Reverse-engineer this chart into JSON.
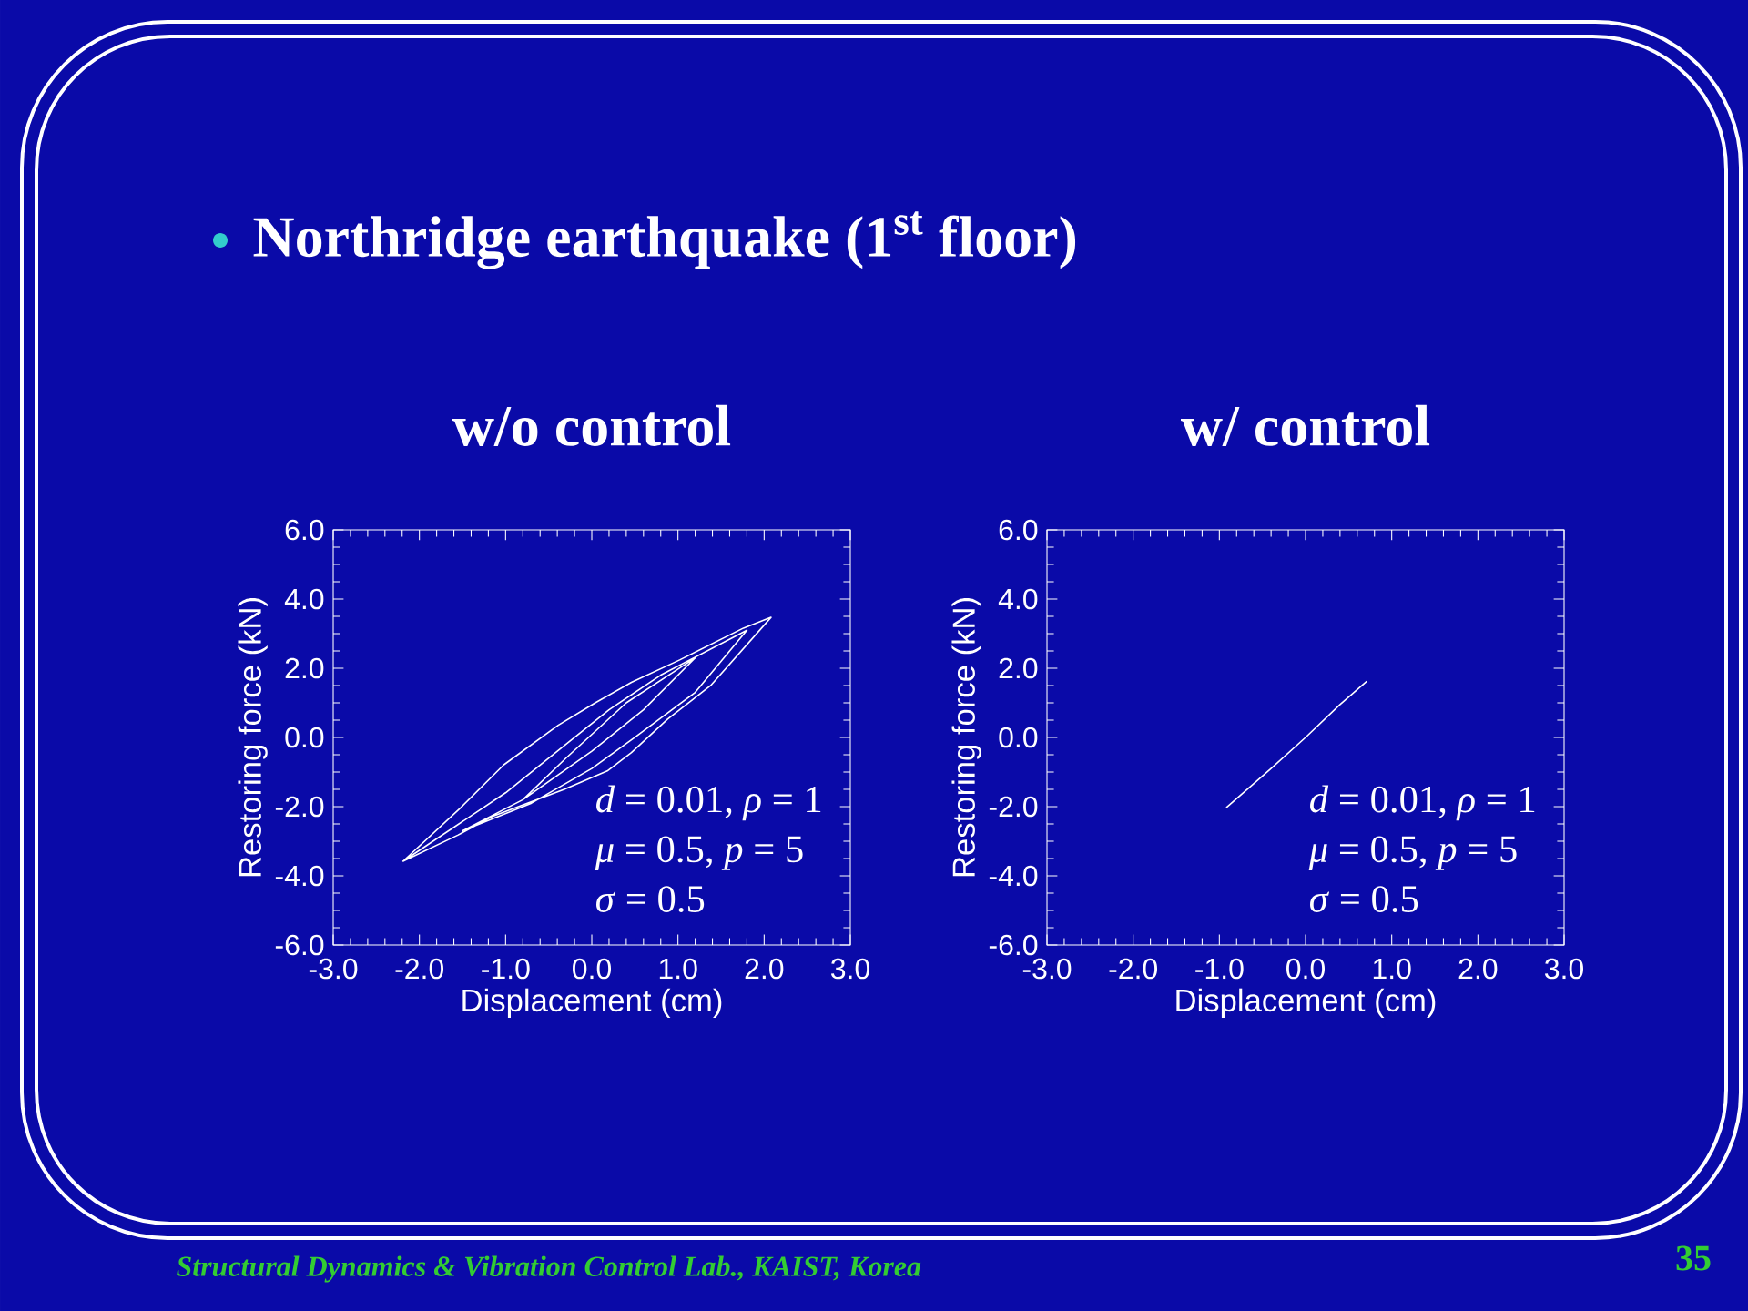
{
  "chart_data": [
    {
      "type": "line",
      "title": "w/o control",
      "xlabel": "Displacement (cm)",
      "ylabel": "Restoring force (kN)",
      "xlim": [
        -3,
        3
      ],
      "ylim": [
        -6,
        6
      ],
      "xticks": [
        {
          "value": -3,
          "label": "-3.0"
        },
        {
          "value": -2,
          "label": "-2.0"
        },
        {
          "value": -1,
          "label": "-1.0"
        },
        {
          "value": 0,
          "label": "0.0"
        },
        {
          "value": 1,
          "label": "1.0"
        },
        {
          "value": 2,
          "label": "2.0"
        },
        {
          "value": 3,
          "label": "3.0"
        }
      ],
      "yticks": [
        {
          "value": -6,
          "label": "-6.0"
        },
        {
          "value": -4,
          "label": "-4.0"
        },
        {
          "value": -2,
          "label": "-2.0"
        },
        {
          "value": 0,
          "label": "0.0"
        },
        {
          "value": 2,
          "label": "2.0"
        },
        {
          "value": 4,
          "label": "4.0"
        },
        {
          "value": 6,
          "label": "6.0"
        }
      ],
      "series": [
        {
          "color": "#ffffff",
          "x": [
            -2.19,
            -1.52,
            -1.02,
            -0.39,
            0.04,
            0.46,
            1.02,
            1.76,
            2.08,
            1.38,
            0.88,
            0.46,
            0.18,
            -0.32,
            -1.16,
            -1.55,
            -2.19,
            -1.0,
            -0.4,
            0.2,
            0.8,
            1.8,
            1.2,
            0.5,
            0.0,
            -0.7,
            -1.5,
            -0.8,
            -0.3,
            0.4,
            1.2,
            0.6,
            0.0,
            -0.8
          ],
          "values": [
            -3.58,
            -2.03,
            -0.79,
            0.35,
            1.0,
            1.59,
            2.24,
            3.16,
            3.47,
            1.5,
            0.53,
            -0.44,
            -0.97,
            -1.5,
            -2.29,
            -2.82,
            -3.58,
            -1.6,
            -0.4,
            0.8,
            1.8,
            3.1,
            1.3,
            0.0,
            -0.9,
            -1.9,
            -2.7,
            -1.8,
            -0.6,
            1.0,
            2.3,
            0.8,
            -0.4,
            -1.8
          ]
        }
      ],
      "annotations": [
        "Northridge earthquake (1$^{st}$ floor)",
        "*d* = 0.01, *ρ* = 1",
        "*μ* = 0.5,  *p* = 5",
        "*σ* = 0.5"
      ]
    },
    {
      "type": "line",
      "title": "w/ control",
      "xlabel": "Displacement (cm)",
      "ylabel": "Restoring force (kN)",
      "xlim": [
        -3,
        3
      ],
      "ylim": [
        -6,
        6
      ],
      "xticks": [
        {
          "value": -3,
          "label": "-3.0"
        },
        {
          "value": -2,
          "label": "-2.0"
        },
        {
          "value": -1,
          "label": "-1.0"
        },
        {
          "value": 0,
          "label": "0.0"
        },
        {
          "value": 1,
          "label": "1.0"
        },
        {
          "value": 2,
          "label": "2.0"
        },
        {
          "value": 3,
          "label": "3.0"
        }
      ],
      "yticks": [
        {
          "value": -6,
          "label": "-6.0"
        },
        {
          "value": -4,
          "label": "-4.0"
        },
        {
          "value": -2,
          "label": "-2.0"
        },
        {
          "value": 0,
          "label": "0.0"
        },
        {
          "value": 2,
          "label": "2.0"
        },
        {
          "value": 4,
          "label": "4.0"
        },
        {
          "value": 6,
          "label": "6.0"
        }
      ],
      "series": [
        {
          "color": "#ffffff",
          "x": [
            -0.92,
            -0.4,
            0.0,
            0.4,
            0.71
          ],
          "values": [
            -2.03,
            -0.9,
            0.0,
            0.95,
            1.62
          ]
        }
      ],
      "annotations": [
        "*d* = 0.01, *ρ* = 1",
        "*μ* = 0.5,  *p* = 5",
        "*σ* = 0.5",
        "Structural Dynamics & Vibration Control Lab., KAIST, Korea",
        "35"
      ]
    }
  ]
}
